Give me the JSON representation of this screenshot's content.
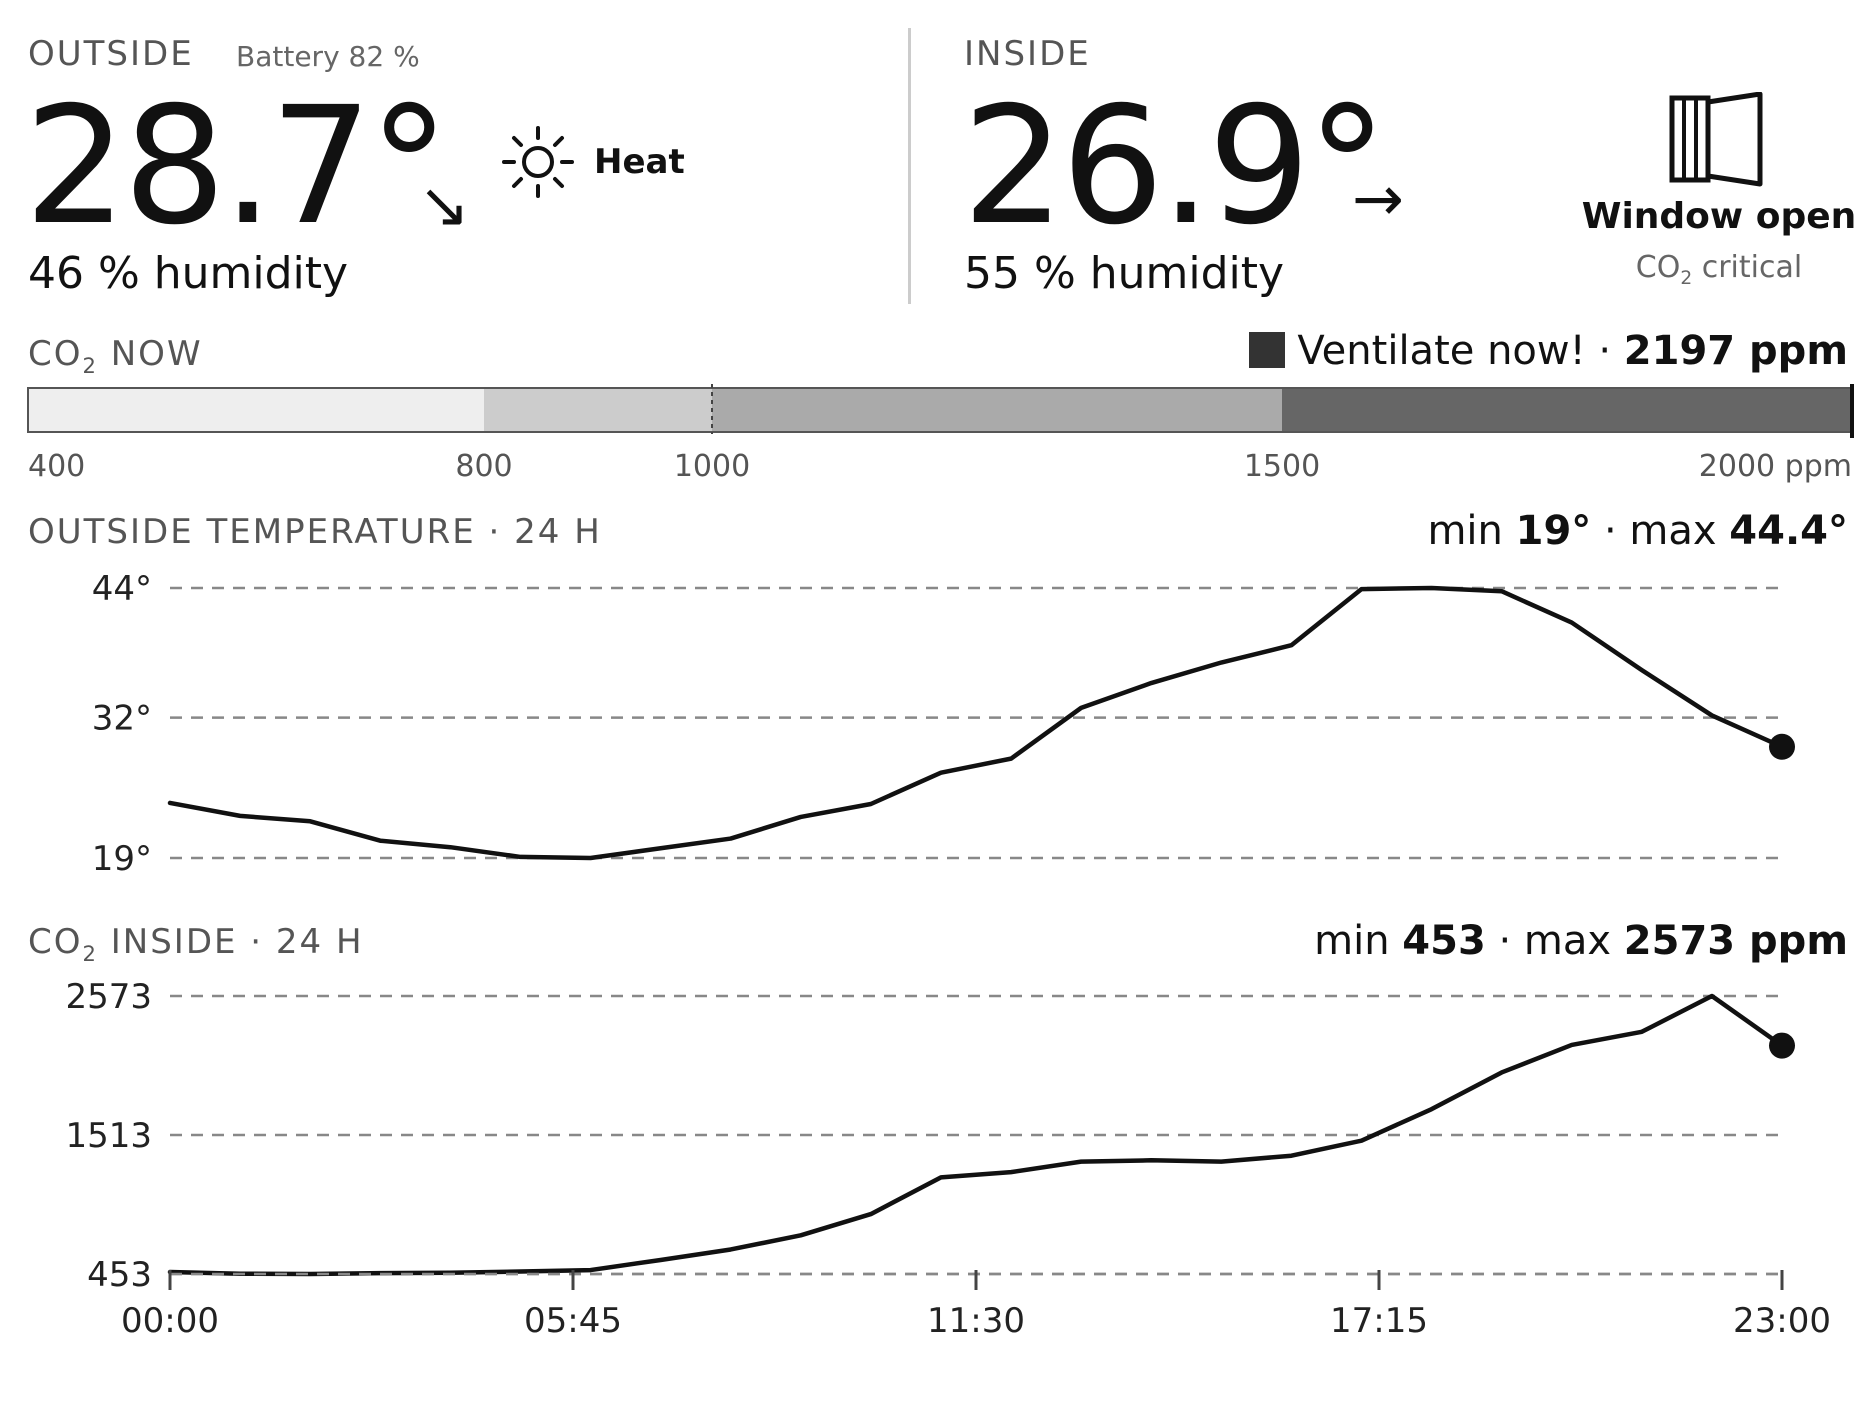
{
  "outside": {
    "label": "OUTSIDE",
    "battery": "Battery 82 %",
    "temp": "28.7°",
    "trend_arrow": "↘",
    "weather_icon": "sun-icon",
    "weather_label": "Heat",
    "humidity": "46 % humidity"
  },
  "inside": {
    "label": "INSIDE",
    "temp": "26.9°",
    "trend_arrow": "→",
    "humidity": "55 % humidity",
    "status_icon": "window-open-icon",
    "status_main": "Window open",
    "status_sub_pre": "CO",
    "status_sub_subscript": "2",
    "status_sub_post": " critical"
  },
  "co2_now": {
    "label_pre": "CO",
    "label_subscript": "2",
    "label_post": " NOW",
    "status_text": "Ventilate now! · ",
    "value_text": "2197 ppm",
    "value": 2197,
    "scale_min": 400,
    "scale_max": 2000,
    "threshold_marker": 1000,
    "bands": [
      {
        "from": 400,
        "to": 800,
        "color": "#eeeeee"
      },
      {
        "from": 800,
        "to": 1000,
        "color": "#cccccc"
      },
      {
        "from": 1000,
        "to": 1500,
        "color": "#aaaaaa"
      },
      {
        "from": 1500,
        "to": 2000,
        "color": "#666666"
      }
    ],
    "tick_labels": [
      {
        "value": 400,
        "text": "400"
      },
      {
        "value": 800,
        "text": "800"
      },
      {
        "value": 1000,
        "text": "1000"
      },
      {
        "value": 1500,
        "text": "1500"
      },
      {
        "value": 2000,
        "text": "2000 ppm"
      }
    ],
    "swatch_color": "#333333"
  },
  "temp_chart_header": {
    "title": "OUTSIDE TEMPERATURE · 24 H",
    "min_label": "min ",
    "min_value": "19°",
    "sep": " · max ",
    "max_value": "44.4°"
  },
  "co2_chart_header": {
    "title_pre": "CO",
    "title_subscript": "2",
    "title_post": " INSIDE · 24 H",
    "min_label": "min ",
    "min_value": "453",
    "sep": " · max ",
    "max_value": "2573 ppm"
  },
  "chart_data": [
    {
      "type": "line",
      "title": "OUTSIDE TEMPERATURE · 24 H",
      "ylim": [
        19,
        44
      ],
      "ytick_labels": [
        {
          "value": 44,
          "text": "44°"
        },
        {
          "value": 32,
          "text": "32°"
        },
        {
          "value": 19,
          "text": "19°"
        }
      ],
      "grid": true,
      "x_hours": [
        0,
        1,
        2,
        3,
        4,
        5,
        6,
        7,
        8,
        9,
        10,
        11,
        12,
        13,
        14,
        15,
        16,
        17,
        18,
        19,
        20,
        21,
        22,
        23
      ],
      "values": [
        24.1,
        22.9,
        22.4,
        20.6,
        20.0,
        19.1,
        19.0,
        19.9,
        20.8,
        22.8,
        24.0,
        26.9,
        28.2,
        32.9,
        35.2,
        37.1,
        38.7,
        43.9,
        44.0,
        43.7,
        40.8,
        36.4,
        32.2,
        29.3
      ],
      "end_marker": true
    },
    {
      "type": "line",
      "title": "CO2 INSIDE · 24 H",
      "ylim": [
        453,
        2573
      ],
      "ytick_labels": [
        {
          "value": 2573,
          "text": "2573"
        },
        {
          "value": 1513,
          "text": "1513"
        },
        {
          "value": 453,
          "text": "453"
        }
      ],
      "grid": true,
      "x_hours": [
        0,
        1,
        2,
        3,
        4,
        5,
        6,
        7,
        8,
        9,
        10,
        11,
        12,
        13,
        14,
        15,
        16,
        17,
        18,
        19,
        20,
        21,
        22,
        23
      ],
      "values": [
        468,
        455,
        453,
        460,
        463,
        472,
        483,
        560,
        640,
        748,
        910,
        1190,
        1230,
        1310,
        1320,
        1310,
        1355,
        1470,
        1710,
        1990,
        2200,
        2300,
        2573,
        2195
      ],
      "end_marker": true,
      "x_tick_labels": [
        {
          "hour": 0,
          "text": "00:00"
        },
        {
          "hour": 5.75,
          "text": "05:45"
        },
        {
          "hour": 11.5,
          "text": "11:30"
        },
        {
          "hour": 17.25,
          "text": "17:15"
        },
        {
          "hour": 23,
          "text": "23:00"
        }
      ]
    }
  ]
}
